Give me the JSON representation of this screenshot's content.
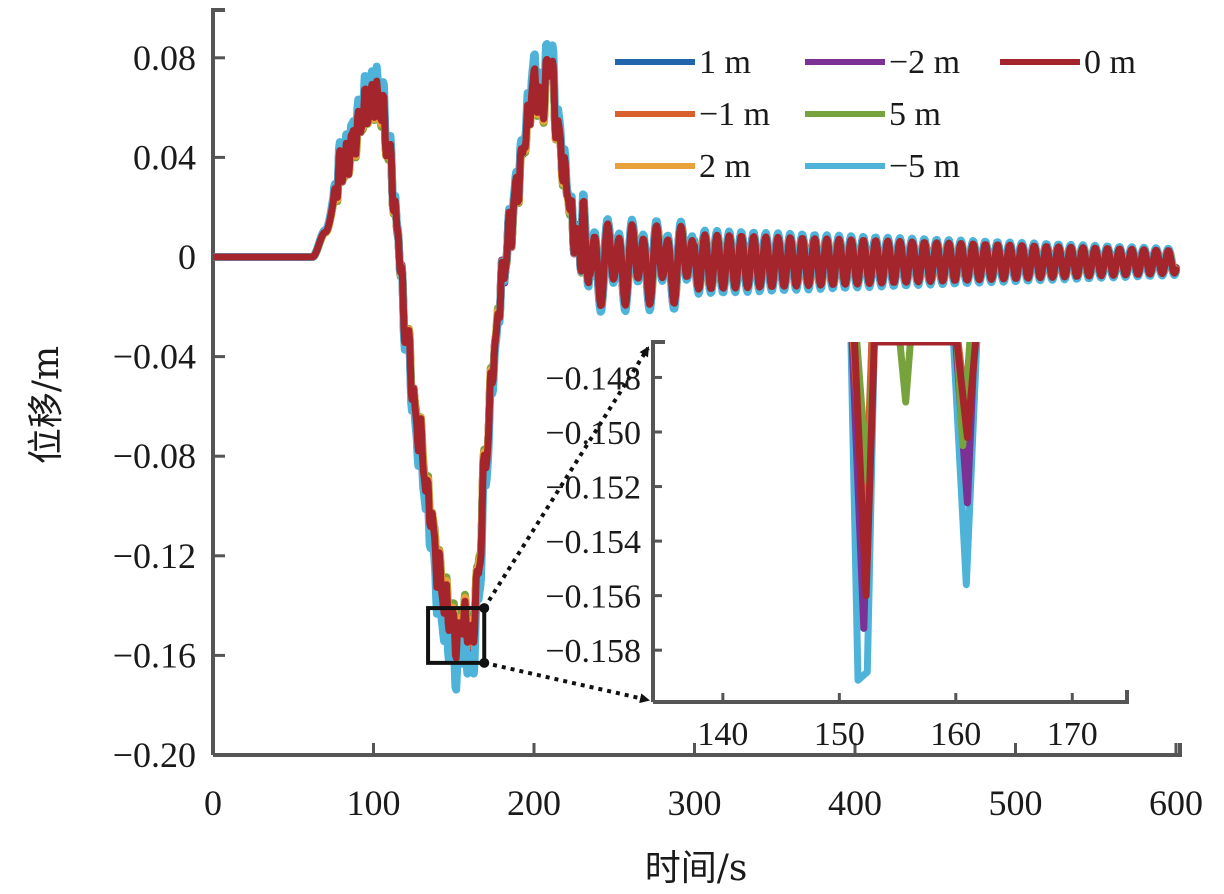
{
  "chart_data": [
    {
      "id": "main",
      "type": "line",
      "title": "",
      "xlabel": "时间/s",
      "ylabel": "位移/m",
      "xlim": [
        0,
        600
      ],
      "ylim": [
        -0.2,
        0.1
      ],
      "xticks": [
        0,
        100,
        200,
        300,
        400,
        500,
        600
      ],
      "xtick_labels": [
        "0",
        "100",
        "200",
        "300",
        "400",
        "500",
        "600"
      ],
      "yticks": [
        0.08,
        0.04,
        0,
        -0.04,
        -0.08,
        -0.12,
        -0.16,
        -0.2
      ],
      "ytick_labels": [
        "0.08",
        "0.04",
        "0",
        "−0.04",
        "−0.08",
        "−0.12",
        "−0.16",
        "−0.20"
      ],
      "grid": false,
      "legend_position": "top-right",
      "legend_columns": 3,
      "base_keypoints": {
        "t": [
          0,
          62,
          70,
          80,
          90,
          95,
          100,
          105,
          110,
          115,
          120,
          128,
          135,
          140,
          145,
          150,
          152,
          155,
          158,
          161,
          165,
          170,
          175,
          180,
          185,
          190,
          195,
          200,
          205,
          210,
          215,
          220,
          225,
          230,
          240
        ],
        "y": [
          0,
          0,
          0.01,
          0.035,
          0.05,
          0.06,
          0.065,
          0.06,
          0.04,
          0.01,
          -0.03,
          -0.07,
          -0.1,
          -0.125,
          -0.14,
          -0.148,
          -0.155,
          -0.145,
          -0.148,
          -0.155,
          -0.13,
          -0.08,
          -0.04,
          -0.01,
          0.01,
          0.03,
          0.05,
          0.07,
          0.06,
          0.08,
          0.05,
          0.03,
          0.01,
          0.002,
          0
        ]
      },
      "oscillation": {
        "start_time": 230,
        "period_s": 7.6,
        "amplitude_start": 0.014,
        "amplitude_end": 0.005,
        "offset": -0.002
      },
      "series": [
        {
          "name": "1 m",
          "label": "1 m",
          "color": "#2166ac",
          "scale": 1.0,
          "phase": 0.0
        },
        {
          "name": "-2 m",
          "label": "−2 m",
          "color": "#7b3294",
          "scale": 1.02,
          "phase": 0.25
        },
        {
          "name": "0 m",
          "label": "0 m",
          "color": "#a4262c",
          "scale": 1.0,
          "phase": 0.0
        },
        {
          "name": "-1 m",
          "label": "−1 m",
          "color": "#d95f2e",
          "scale": 1.01,
          "phase": 0.1
        },
        {
          "name": "5 m",
          "label": "5 m",
          "color": "#77a33c",
          "scale": 0.98,
          "phase": -0.3
        },
        {
          "name": "2 m",
          "label": "2 m",
          "color": "#e9a23b",
          "scale": 0.99,
          "phase": -0.15
        },
        {
          "name": "-5 m",
          "label": "−5 m",
          "color": "#4db3d9",
          "scale": 1.08,
          "phase": 0.05
        }
      ],
      "draw_order": [
        "1 m",
        "-2 m",
        "-1 m",
        "5 m",
        "2 m",
        "-5 m",
        "0 m"
      ],
      "zoom_box": {
        "x": [
          134,
          169
        ],
        "y": [
          -0.163,
          -0.141
        ]
      }
    },
    {
      "id": "inset",
      "type": "line",
      "title": "",
      "xlabel": "",
      "ylabel": "",
      "xlim": [
        134,
        174.7
      ],
      "ylim": [
        -0.1599,
        -0.1467
      ],
      "xticks": [
        140,
        150,
        160,
        170
      ],
      "xtick_labels": [
        "140",
        "150",
        "160",
        "170"
      ],
      "yticks": [
        -0.148,
        -0.15,
        -0.152,
        -0.154,
        -0.156,
        -0.158
      ],
      "ytick_labels": [
        "−0.148",
        "−0.150",
        "−0.152",
        "−0.154",
        "−0.156",
        "−0.158"
      ],
      "grid": false,
      "minima": [
        {
          "series": "-5 m",
          "color": "#4db3d9",
          "points": [
            [
              151.0,
              -0.1467
            ],
            [
              151.6,
              -0.1591
            ],
            [
              152.4,
              -0.1588
            ],
            [
              153.0,
              -0.1467
            ],
            [
              159.8,
              -0.1467
            ],
            [
              160.9,
              -0.1556
            ],
            [
              161.8,
              -0.1467
            ]
          ]
        },
        {
          "series": "-2 m",
          "color": "#7b3294",
          "points": [
            [
              151.1,
              -0.1467
            ],
            [
              152.1,
              -0.1572
            ],
            [
              152.8,
              -0.1467
            ],
            [
              160.0,
              -0.1467
            ],
            [
              161.0,
              -0.1526
            ],
            [
              161.6,
              -0.1467
            ]
          ]
        },
        {
          "series": "-1 m",
          "color": "#d95f2e",
          "points": [
            [
              151.2,
              -0.1467
            ],
            [
              152.2,
              -0.1535
            ],
            [
              152.8,
              -0.1467
            ],
            [
              160.2,
              -0.1467
            ],
            [
              161.0,
              -0.1496
            ],
            [
              161.5,
              -0.1467
            ]
          ]
        },
        {
          "series": "5 m",
          "color": "#77a33c",
          "points": [
            [
              151.5,
              -0.1467
            ],
            [
              152.4,
              -0.1518
            ],
            [
              153.0,
              -0.1467
            ],
            [
              155.2,
              -0.1467
            ],
            [
              155.7,
              -0.1489
            ],
            [
              156.1,
              -0.1467
            ],
            [
              160.1,
              -0.1467
            ],
            [
              160.6,
              -0.1505
            ],
            [
              161.2,
              -0.1467
            ]
          ]
        },
        {
          "series": "0 m",
          "color": "#a4262c",
          "points": [
            [
              151.3,
              -0.1467
            ],
            [
              152.3,
              -0.156
            ],
            [
              153.0,
              -0.1467
            ],
            [
              160.1,
              -0.1467
            ],
            [
              161.0,
              -0.1502
            ],
            [
              161.7,
              -0.1467
            ]
          ]
        }
      ]
    }
  ]
}
